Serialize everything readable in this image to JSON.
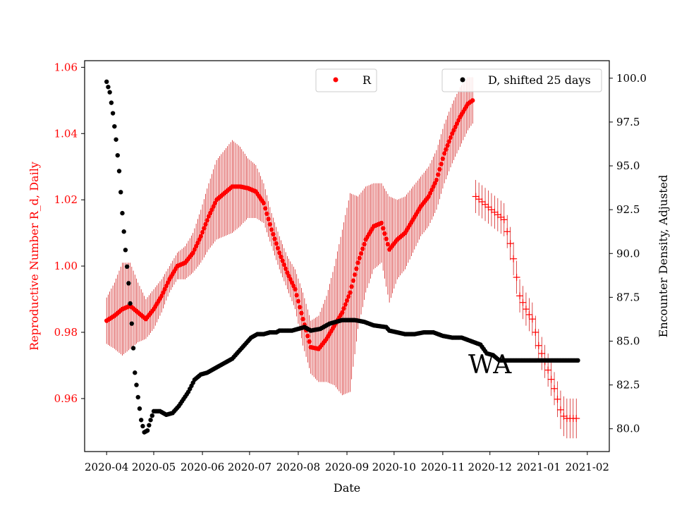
{
  "chart_data": {
    "type": "scatter",
    "xlabel": "Date",
    "ylabel_left": "Reproductive Number R_d, Daily",
    "ylabel_right": "Encounter Density, Adjusted",
    "annotation": "WA",
    "x_ticks": [
      "2020-04",
      "2020-05",
      "2020-06",
      "2020-07",
      "2020-08",
      "2020-09",
      "2020-10",
      "2020-11",
      "2020-12",
      "2021-01",
      "2021-02"
    ],
    "x_range_days": [
      -14,
      320
    ],
    "y_left_range": [
      0.944,
      1.062
    ],
    "y_left_ticks": [
      "0.96",
      "0.98",
      "1.00",
      "1.02",
      "1.04",
      "1.06"
    ],
    "y_right_range": [
      78.7,
      101.0
    ],
    "y_right_ticks": [
      "80.0",
      "82.5",
      "85.0",
      "87.5",
      "90.0",
      "92.5",
      "95.0",
      "97.5",
      "100.0"
    ],
    "colors": {
      "R": "#ff0000",
      "errbar": "#cc0000",
      "D": "#000000",
      "left_axis": "#ff0000"
    },
    "legend": [
      {
        "name": "R",
        "marker": "red-dot",
        "placement": "upper-center"
      },
      {
        "name": "D, shifted 25 days",
        "marker": "black-dot",
        "placement": "upper-right"
      }
    ],
    "series_R": {
      "name": "R",
      "axis": "left",
      "marker": "dot",
      "unit_step_days": 1,
      "day_range": [
        0,
        233
      ],
      "keypoints_days": [
        0,
        5,
        10,
        15,
        20,
        25,
        30,
        35,
        40,
        45,
        50,
        55,
        60,
        65,
        70,
        75,
        80,
        85,
        90,
        95,
        100,
        105,
        110,
        115,
        120,
        125,
        130,
        135,
        140,
        145,
        150,
        155,
        160,
        165,
        170,
        175,
        180,
        185,
        190,
        195,
        200,
        205,
        210,
        215,
        220,
        225,
        230,
        233
      ],
      "keypoints_values": [
        0.9835,
        0.985,
        0.987,
        0.988,
        0.986,
        0.984,
        0.987,
        0.991,
        0.996,
        1.0,
        1.001,
        1.004,
        1.009,
        1.015,
        1.02,
        1.022,
        1.024,
        1.024,
        1.0235,
        1.0225,
        1.019,
        1.011,
        1.004,
        0.998,
        0.993,
        0.984,
        0.9755,
        0.975,
        0.978,
        0.982,
        0.986,
        0.992,
        1.001,
        1.008,
        1.012,
        1.013,
        1.005,
        1.008,
        1.01,
        1.014,
        1.018,
        1.021,
        1.026,
        1.034,
        1.04,
        1.045,
        1.049,
        1.05
      ],
      "keypoints_errors": [
        0.007,
        0.01,
        0.014,
        0.013,
        0.009,
        0.006,
        0.006,
        0.005,
        0.004,
        0.004,
        0.005,
        0.006,
        0.008,
        0.01,
        0.012,
        0.013,
        0.014,
        0.012,
        0.009,
        0.008,
        0.006,
        0.005,
        0.005,
        0.005,
        0.006,
        0.008,
        0.008,
        0.01,
        0.013,
        0.018,
        0.025,
        0.03,
        0.02,
        0.016,
        0.013,
        0.012,
        0.016,
        0.012,
        0.011,
        0.01,
        0.009,
        0.009,
        0.009,
        0.009,
        0.009,
        0.009,
        0.008,
        0.007
      ]
    },
    "series_R_cross": {
      "name": "R",
      "axis": "left",
      "marker": "plus",
      "unit_step_days": 2,
      "day_range": [
        235,
        299
      ],
      "keypoints_days": [
        235,
        245,
        253,
        258,
        263,
        268,
        271,
        275,
        280,
        285,
        290,
        293,
        296,
        299
      ],
      "keypoints_values": [
        1.021,
        1.017,
        1.014,
        1.005,
        0.991,
        0.986,
        0.984,
        0.976,
        0.97,
        0.963,
        0.955,
        0.954,
        0.954,
        0.954
      ],
      "keypoints_errors": [
        0.005,
        0.005,
        0.005,
        0.005,
        0.005,
        0.005,
        0.005,
        0.005,
        0.005,
        0.005,
        0.006,
        0.006,
        0.006,
        0.006
      ]
    },
    "series_D": {
      "name": "D, shifted 25 days",
      "axis": "right",
      "marker": "dot",
      "unit_step_days": 1,
      "day_range": [
        0,
        300
      ],
      "keypoints_days": [
        0,
        2,
        4,
        6,
        8,
        10,
        12,
        14,
        16,
        18,
        20,
        22,
        24,
        26,
        28,
        30,
        34,
        38,
        42,
        46,
        52,
        56,
        60,
        64,
        68,
        72,
        76,
        80,
        86,
        92,
        96,
        100,
        104,
        108,
        110,
        114,
        118,
        122,
        126,
        130,
        136,
        142,
        150,
        158,
        164,
        170,
        178,
        180,
        185,
        190,
        196,
        202,
        208,
        214,
        220,
        226,
        232,
        238,
        242,
        246,
        250,
        300
      ],
      "keypoints_values": [
        99.8,
        99.2,
        98.0,
        96.5,
        94.7,
        92.3,
        90.2,
        88.3,
        86.0,
        83.2,
        81.8,
        80.5,
        79.8,
        79.9,
        80.5,
        81.0,
        81.0,
        80.8,
        80.9,
        81.3,
        82.1,
        82.8,
        83.1,
        83.2,
        83.4,
        83.6,
        83.8,
        84.0,
        84.6,
        85.2,
        85.4,
        85.4,
        85.5,
        85.5,
        85.6,
        85.6,
        85.6,
        85.7,
        85.8,
        85.6,
        85.7,
        86.0,
        86.2,
        86.2,
        86.1,
        85.9,
        85.8,
        85.6,
        85.5,
        85.4,
        85.4,
        85.5,
        85.5,
        85.3,
        85.2,
        85.2,
        85.0,
        84.8,
        84.3,
        84.2,
        83.9,
        83.9
      ]
    }
  }
}
